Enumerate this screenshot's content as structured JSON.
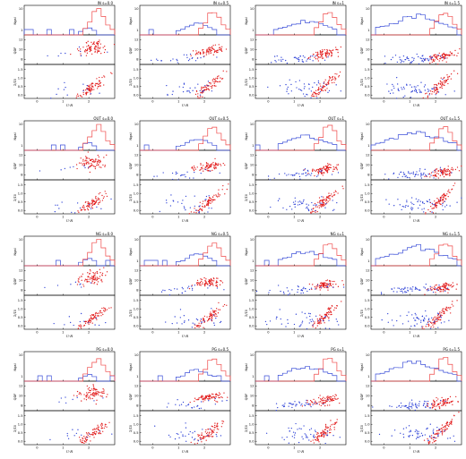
{
  "figure": {
    "colors": {
      "red": "#e21d1d",
      "blue": "#2b3fd6",
      "hist_red": "#ef4848",
      "hist_blue": "#3b4fd8",
      "axis": "#000000"
    }
  },
  "chart_data": {
    "type": "scatter",
    "layout": "4x4 grid of panels; each panel has a histogram on top and two scatter plots below",
    "rows": [
      "IN",
      "OUT",
      "NG",
      "PG"
    ],
    "columns": [
      "s=0.0",
      "s=0.5",
      "s=1",
      "s=1.5"
    ],
    "panels": [
      {
        "row": "IN",
        "col": "s=0.0",
        "title": "IN  s=0.0"
      },
      {
        "row": "IN",
        "col": "s=0.5",
        "title": "IN  s=0.5"
      },
      {
        "row": "IN",
        "col": "s=1",
        "title": "IN  s=1"
      },
      {
        "row": "IN",
        "col": "s=1.5",
        "title": "IN  s=1.5"
      },
      {
        "row": "OUT",
        "col": "s=0.0",
        "title": "OUT  s=0.0"
      },
      {
        "row": "OUT",
        "col": "s=0.5",
        "title": "OUT  s=0.5"
      },
      {
        "row": "OUT",
        "col": "s=1",
        "title": "OUT  s=1"
      },
      {
        "row": "OUT",
        "col": "s=1.5",
        "title": "OUT  s=1.5"
      },
      {
        "row": "NG",
        "col": "s=0.0",
        "title": "NG  s=0.0"
      },
      {
        "row": "NG",
        "col": "s=0.5",
        "title": "NG  s=0.5"
      },
      {
        "row": "NG",
        "col": "s=1",
        "title": "NG  s=1"
      },
      {
        "row": "NG",
        "col": "s=1.5",
        "title": "NG  s=1.5"
      },
      {
        "row": "PG",
        "col": "s=0.0",
        "title": "PG  s=0.0"
      },
      {
        "row": "PG",
        "col": "s=0.5",
        "title": "PG  s=0.5"
      },
      {
        "row": "PG",
        "col": "s=1",
        "title": "PG  s=1"
      },
      {
        "row": "PG",
        "col": "s=1.5",
        "title": "PG  s=1.5"
      }
    ],
    "histogram": {
      "ylabel": "N_gal",
      "yticks": [
        "1",
        "10"
      ],
      "log_y": true
    },
    "scatter_top": {
      "ylabel": "Q_DF",
      "yticks": [
        "8",
        "10",
        "12"
      ],
      "ylim": [
        7,
        13
      ]
    },
    "scatter_bottom": {
      "ylabel": "Σ/Σ_0",
      "yticks": [
        "0.0",
        "0.5",
        "1.0",
        "1.5"
      ],
      "ylim": [
        -0.2,
        1.8
      ]
    },
    "x_axis": {
      "xlabel": "U-R",
      "xticks": [
        "0",
        "1",
        "2"
      ],
      "xlim": [
        -0.5,
        3
      ]
    },
    "series": [
      {
        "name": "red",
        "color": "#e21d1d"
      },
      {
        "name": "blue",
        "color": "#2b3fd6"
      }
    ]
  }
}
